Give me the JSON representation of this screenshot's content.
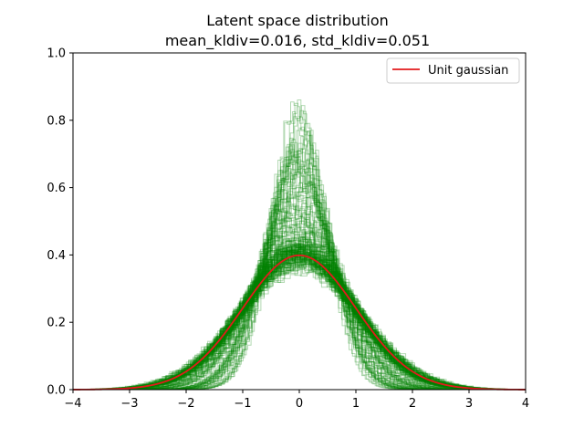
{
  "chart_data": {
    "type": "line",
    "title": "Latent space distribution",
    "subtitle": "mean_kldiv=0.016, std_kldiv=0.051",
    "xlabel": "",
    "ylabel": "",
    "xlim": [
      -4,
      4
    ],
    "ylim": [
      0,
      1.0
    ],
    "x_ticks": [
      -4,
      -3,
      -2,
      -1,
      0,
      1,
      2,
      3,
      4
    ],
    "x_tick_labels": [
      "−4",
      "−3",
      "−2",
      "−1",
      "0",
      "1",
      "2",
      "3",
      "4"
    ],
    "y_ticks": [
      0.0,
      0.2,
      0.4,
      0.6,
      0.8,
      1.0
    ],
    "y_tick_labels": [
      "0.0",
      "0.2",
      "0.4",
      "0.6",
      "0.8",
      "1.0"
    ],
    "grid": false,
    "legend": {
      "position": "top-right",
      "entries": [
        "Unit gaussian"
      ]
    },
    "series": [
      {
        "name": "Unit gaussian",
        "color": "#e31a1c",
        "style": "line",
        "function": "standard normal pdf",
        "mu": 0,
        "sigma": 1
      }
    ],
    "histograms": {
      "color": "#008000",
      "style": "step",
      "opacity": 0.3,
      "description": "many latent-dimension histograms",
      "typical_peak_range": [
        0.33,
        0.83
      ]
    }
  }
}
